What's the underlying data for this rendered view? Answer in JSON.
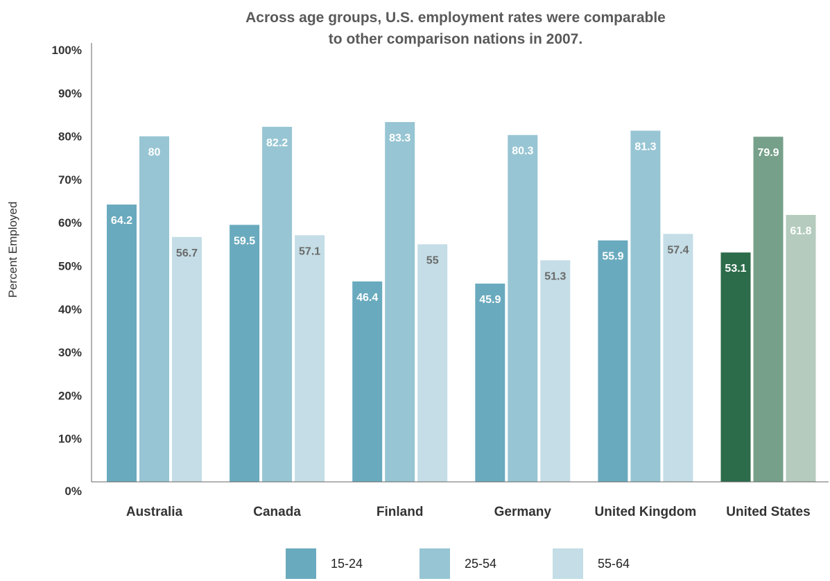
{
  "chart_data": {
    "type": "bar",
    "title_lines": [
      "Across age groups, U.S. employment rates were comparable",
      "to other comparison nations in 2007."
    ],
    "ylabel": "Percent Employed",
    "ylim": [
      0,
      100
    ],
    "yticks": [
      "0%",
      "10%",
      "20%",
      "30%",
      "40%",
      "50%",
      "60%",
      "70%",
      "80%",
      "90%",
      "100%"
    ],
    "categories": [
      "Australia",
      "Canada",
      "Finland",
      "Germany",
      "United Kingdom",
      "United States"
    ],
    "series": [
      {
        "name": "15-24",
        "color": "#6aaabe",
        "values": [
          64.2,
          59.5,
          46.4,
          45.9,
          55.9,
          53.1
        ]
      },
      {
        "name": "25-54",
        "color": "#97c5d3",
        "values": [
          80,
          82.2,
          83.3,
          80.3,
          81.3,
          79.9
        ]
      },
      {
        "name": "55-64",
        "color": "#c4dde6",
        "values": [
          56.7,
          57.1,
          55,
          51.3,
          57.4,
          61.8
        ]
      }
    ],
    "highlight": {
      "category": "United States",
      "colors": [
        "#2c6c4a",
        "#76a089",
        "#b4cbbd"
      ]
    },
    "label_colors": [
      "#ffffff",
      "#ffffff",
      "#6a6a6a"
    ],
    "highlight_label_colors": [
      "#ffffff",
      "#ffffff",
      "#ffffff"
    ],
    "axis_color": "#666666",
    "legend_position": "bottom-center"
  }
}
